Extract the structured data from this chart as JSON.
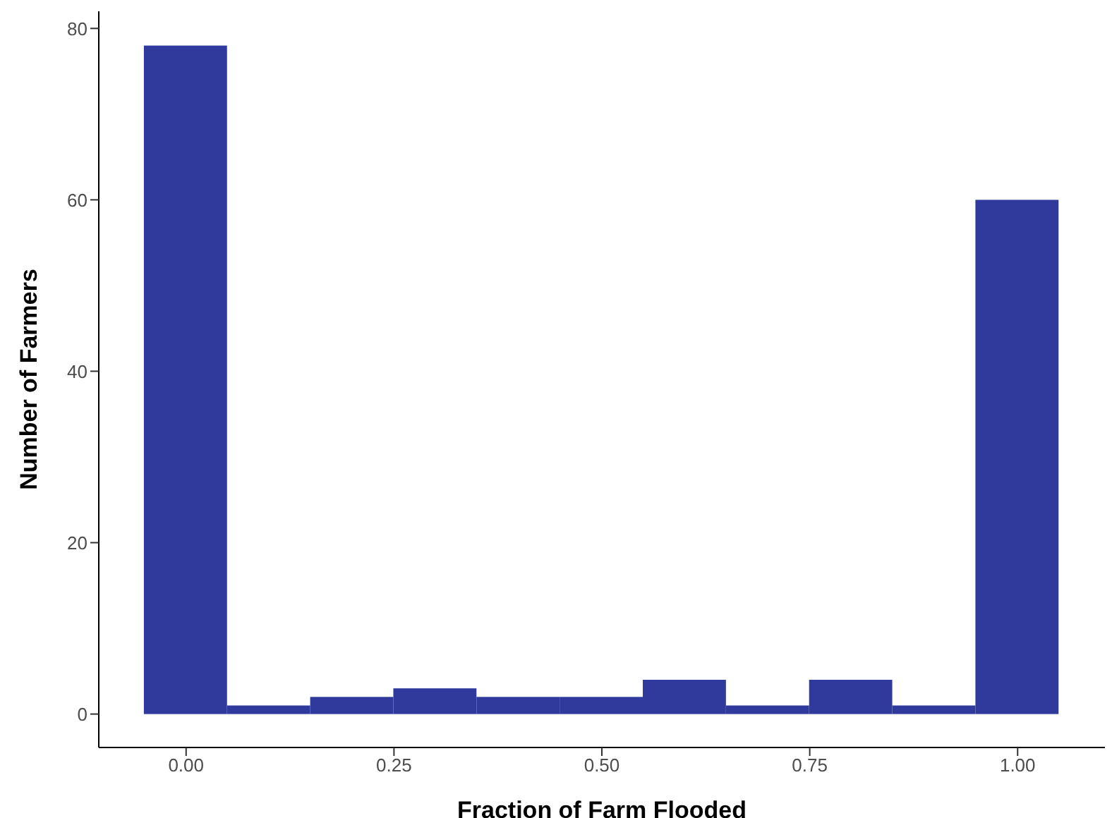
{
  "chart_data": {
    "type": "histogram",
    "xlabel": "Fraction of Farm Flooded",
    "ylabel": "Number of Farmers",
    "bins": [
      -0.05,
      0.05,
      0.15,
      0.25,
      0.35,
      0.45,
      0.55,
      0.65,
      0.75,
      0.85,
      0.95,
      1.05
    ],
    "values": [
      78,
      1,
      2,
      3,
      2,
      2,
      4,
      1,
      4,
      1,
      60
    ],
    "color": "#303a9c",
    "xlim": [
      -0.105,
      1.105
    ],
    "ylim": [
      -3.9,
      82
    ],
    "xticks": [
      {
        "value": 0,
        "label": "0.00"
      },
      {
        "value": 0.25,
        "label": "0.25"
      },
      {
        "value": 0.5,
        "label": "0.50"
      },
      {
        "value": 0.75,
        "label": "0.75"
      },
      {
        "value": 1,
        "label": "1.00"
      }
    ],
    "yticks": [
      0,
      20,
      40,
      60,
      80
    ],
    "grid": false,
    "legend": false
  }
}
